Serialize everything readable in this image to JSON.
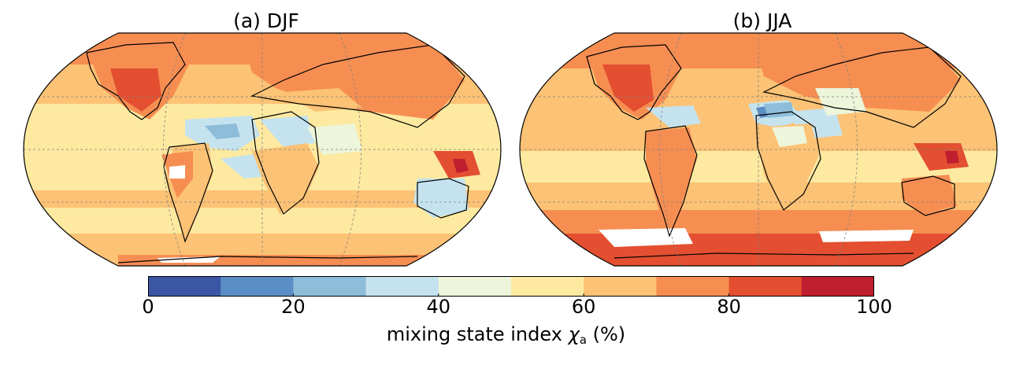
{
  "panels": [
    {
      "id": "a",
      "title": "(a) DJF"
    },
    {
      "id": "b",
      "title": "(b) JJA"
    }
  ],
  "colorbar": {
    "min": 0,
    "max": 100,
    "ticks": [
      "0",
      "20",
      "40",
      "60",
      "80",
      "100"
    ],
    "label_prefix": "mixing state index ",
    "label_symbol": "χ",
    "label_subscript": "a",
    "label_suffix": " (%)",
    "colors": [
      "#3a56a5",
      "#5b8ec4",
      "#8dbdd9",
      "#c5e3ef",
      "#edf5da",
      "#fde9a0",
      "#fcc275",
      "#f68e52",
      "#e34f30",
      "#be1e2d"
    ]
  },
  "map_style": {
    "ocean_fill_djf": "#fde9a0",
    "ocean_fill_jja": "#fcc275",
    "gridline_color": "#808080",
    "coast_color": "#000000",
    "missing_color": "#ffffff"
  }
}
